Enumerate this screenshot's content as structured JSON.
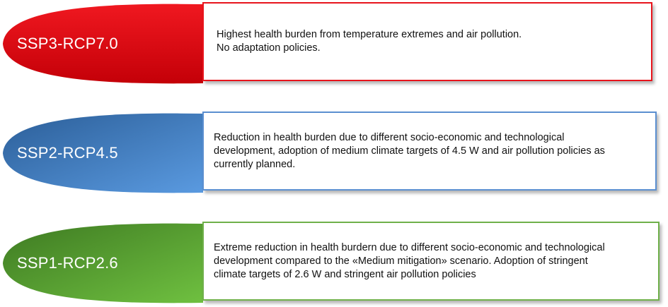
{
  "scenarios": [
    {
      "label": "SSP3-RCP7.0",
      "lines": [
        "Highest health burden from temperature extremes and air pollution.",
        "No adaptation policies."
      ],
      "border_color": "#e8141c",
      "gradient_light": "#f01820",
      "gradient_dark": "#c40008"
    },
    {
      "label": "SSP2-RCP4.5",
      "lines": [
        "Reduction in health burden due to different socio-economic and technological",
        "development, adoption of medium climate targets of 4.5 W and air pollution policies as",
        "currently planned."
      ],
      "border_color": "#5b8fd0",
      "gradient_light": "#5a9ae0",
      "gradient_dark": "#2b5e98"
    },
    {
      "label": "SSP1-RCP2.6",
      "lines": [
        "Extreme reduction in health burdern due to different socio-economic and technological",
        "development compared to the «Medium mitigation» scenario. Adoption of stringent",
        "climate targets of 2.6 W and stringent air pollution policies"
      ],
      "border_color": "#6fb04a",
      "gradient_light": "#6fc040",
      "gradient_dark": "#3e7a22"
    }
  ]
}
